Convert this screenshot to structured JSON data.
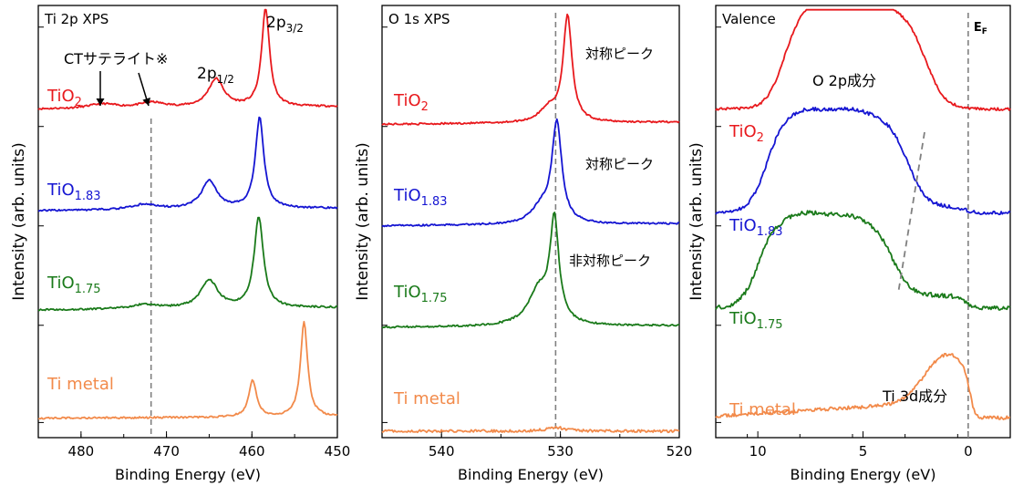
{
  "colors": {
    "TiO2": "#e8191d",
    "TiO1.83": "#1515d2",
    "TiO1.75": "#1a7a1a",
    "Ti metal": "#f28a4a",
    "axis": "#000000",
    "guide": "#808080"
  },
  "chart_data": [
    {
      "type": "line",
      "title": "Ti 2p XPS",
      "xlabel": "Binding Energy (eV)",
      "ylabel": "Intensity (arb. units)",
      "xlim": [
        485,
        450
      ],
      "xticks": [
        480,
        470,
        460,
        450
      ],
      "xtick_labels": [
        "480",
        "470",
        "460",
        "450"
      ],
      "ylim": [
        0,
        1
      ],
      "series": [
        {
          "name": "TiO2",
          "label_base": "TiO",
          "label_sub": "2",
          "baseline": 0.76,
          "peaks": [
            [
              458.4,
              0.23,
              0.55
            ],
            [
              464.2,
              0.065,
              1.1
            ],
            [
              471.7,
              0.012,
              1.8
            ],
            [
              477.5,
              0.01,
              2
            ]
          ],
          "slope": 0.012,
          "noise": 0.002
        },
        {
          "name": "TiO1.83",
          "label_base": "TiO",
          "label_sub": "1.83",
          "baseline": 0.525,
          "peaks": [
            [
              459.1,
              0.21,
              0.6
            ],
            [
              465.0,
              0.065,
              1.1
            ],
            [
              472.5,
              0.012,
              1.8
            ]
          ],
          "slope": 0.012,
          "noise": 0.002
        },
        {
          "name": "TiO1.75",
          "label_base": "TiO",
          "label_sub": "1.75",
          "baseline": 0.295,
          "peaks": [
            [
              459.2,
              0.21,
              0.65
            ],
            [
              465.0,
              0.065,
              1.2
            ],
            [
              472.5,
              0.01,
              2
            ]
          ],
          "slope": 0.012,
          "noise": 0.002
        },
        {
          "name": "Ti metal",
          "label_base": "Ti metal",
          "label_sub": "",
          "baseline": 0.045,
          "peaks": [
            [
              453.9,
              0.22,
              0.5
            ],
            [
              459.9,
              0.085,
              0.55
            ]
          ],
          "slope": 0.006,
          "noise": 0.002
        }
      ],
      "guide_x": 471.8,
      "annotations": {
        "ct_label": "CTサテライト※",
        "p12_base": "2p",
        "p12_sub": "1/2",
        "p32_base": "2p",
        "p32_sub": "3/2"
      }
    },
    {
      "type": "line",
      "title": "O 1s XPS",
      "xlabel": "Binding Energy (eV)",
      "ylabel": "Intensity (arb. units)",
      "xlim": [
        545,
        520
      ],
      "xticks": [
        540,
        530,
        520
      ],
      "xtick_labels": [
        "540",
        "530",
        "520"
      ],
      "ylim": [
        0,
        1
      ],
      "series": [
        {
          "name": "TiO2",
          "label_base": "TiO",
          "label_sub": "2",
          "baseline": 0.725,
          "peaks": [
            [
              529.4,
              0.245,
              0.45
            ],
            [
              531.0,
              0.03,
              0.9
            ]
          ],
          "slope": 0.01,
          "noise": 0.002
        },
        {
          "name": "TiO1.83",
          "label_base": "TiO",
          "label_sub": "1.83",
          "baseline": 0.49,
          "peaks": [
            [
              530.3,
              0.23,
              0.5
            ],
            [
              531.6,
              0.035,
              1.0
            ]
          ],
          "slope": 0.01,
          "noise": 0.002
        },
        {
          "name": "TiO1.75",
          "label_base": "TiO",
          "label_sub": "1.75",
          "baseline": 0.255,
          "peaks": [
            [
              530.5,
              0.23,
              0.45
            ],
            [
              531.8,
              0.08,
              1.1
            ]
          ],
          "slope": 0.008,
          "noise": 0.002
        },
        {
          "name": "Ti metal",
          "label_base": "Ti metal",
          "label_sub": "",
          "baseline": 0.015,
          "peaks": [
            [
              530.3,
              0.008,
              1.0
            ]
          ],
          "slope": 0.0,
          "noise": 0.003
        }
      ],
      "guide_x": 530.4,
      "annotations": {
        "sym1": "対称ピーク",
        "sym2": "対称ピーク",
        "asym": "非対称ピーク"
      }
    },
    {
      "type": "line",
      "title": "Valence",
      "xlabel": "Binding Energy (eV)",
      "ylabel": "Intensity (arb. units)",
      "xlim": [
        12,
        -2
      ],
      "xticks": [
        10,
        5,
        0
      ],
      "xtick_labels": [
        "10",
        "5",
        "0"
      ],
      "ylim": [
        0,
        1
      ],
      "series": [
        {
          "name": "TiO2",
          "label_base": "TiO",
          "label_sub": "2",
          "baseline": 0.76,
          "band": [
            2.0,
            8.8,
            0.22
          ],
          "band_peaks": [
            [
              7.0,
              0.035,
              0.8
            ],
            [
              4.3,
              0.025,
              0.9
            ]
          ],
          "fermi": 0.0,
          "noise": 0.003
        },
        {
          "name": "TiO1.83",
          "label_base": "TiO",
          "label_sub": "1.83",
          "baseline": 0.52,
          "band": [
            2.9,
            9.6,
            0.22
          ],
          "band_peaks": [
            [
              7.7,
              0.02,
              0.8
            ],
            [
              5.6,
              0.02,
              0.9
            ]
          ],
          "fermi": 0.012,
          "noise": 0.004
        },
        {
          "name": "TiO1.75",
          "label_base": "TiO",
          "label_sub": "1.75",
          "baseline": 0.3,
          "band": [
            3.6,
            10.0,
            0.2
          ],
          "band_peaks": [
            [
              7.8,
              0.02,
              0.8
            ],
            [
              5.8,
              0.015,
              0.9
            ]
          ],
          "fermi": 0.028,
          "noise": 0.005
        },
        {
          "name": "Ti metal",
          "label_base": "Ti metal",
          "label_sub": "",
          "baseline": 0.05,
          "metal": true,
          "noise": 0.004
        }
      ],
      "guide_x": 0.0,
      "ef_base": "E",
      "ef_sub": "F",
      "annotations": {
        "o2p": "O 2p成分",
        "ti3d": "Ti 3d成分"
      }
    }
  ]
}
